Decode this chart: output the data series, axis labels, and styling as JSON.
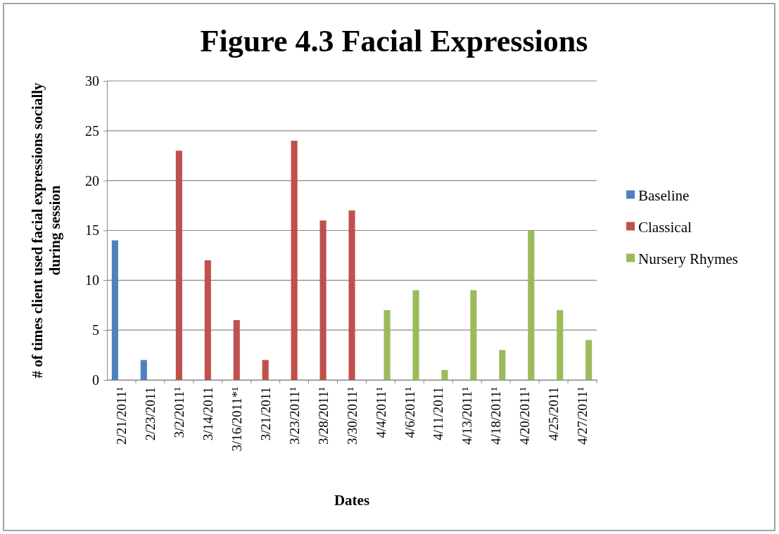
{
  "chart_data": {
    "type": "bar",
    "title": "Figure 4.3 Facial Expressions",
    "xlabel": "Dates",
    "ylabel": "# of times client used facial expressions socially during session",
    "categories": [
      "2/21/2011¹",
      "2/23/2011",
      "3/2/2011¹",
      "3/14/2011",
      "3/16/2011*¹",
      "3/21/2011",
      "3/23/2011¹",
      "3/28/2011¹",
      "3/30/2011¹",
      "4/4/2011¹",
      "4/6/2011¹",
      "4/11/2011",
      "4/13/2011¹",
      "4/18/2011¹",
      "4/20/2011¹",
      "4/25/2011",
      "4/27/2011¹"
    ],
    "series": [
      {
        "name": "Baseline",
        "color": "#4f81bd",
        "values": [
          14,
          2,
          null,
          null,
          null,
          null,
          null,
          null,
          null,
          null,
          null,
          null,
          null,
          null,
          null,
          null,
          null
        ]
      },
      {
        "name": "Classical",
        "color": "#c0504d",
        "values": [
          null,
          null,
          23,
          12,
          6,
          2,
          24,
          16,
          17,
          null,
          null,
          null,
          null,
          null,
          null,
          null,
          null
        ]
      },
      {
        "name": "Nursery Rhymes",
        "color": "#9bbb59",
        "values": [
          null,
          null,
          null,
          null,
          null,
          null,
          null,
          null,
          null,
          7,
          9,
          1,
          9,
          3,
          15,
          7,
          4
        ]
      }
    ],
    "ylim": [
      0,
      30
    ],
    "yticks": [
      0,
      5,
      10,
      15,
      20,
      25,
      30
    ],
    "grid": "y",
    "legend": "right"
  }
}
